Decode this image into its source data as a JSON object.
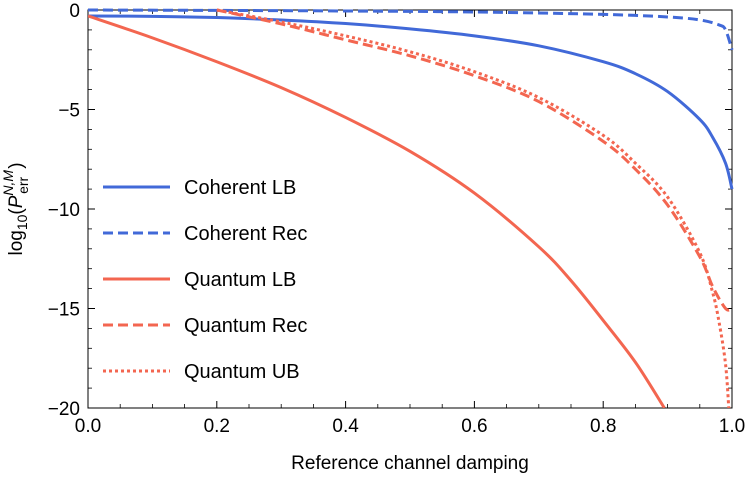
{
  "chart_data": {
    "type": "line",
    "xlabel": "Reference channel damping",
    "ylabel": {
      "base": "log",
      "sub": "10",
      "open": "(",
      "p": "P",
      "sup": "N,M",
      "psub": "err",
      "close": ")"
    },
    "xlim": [
      0.0,
      1.0
    ],
    "ylim": [
      -20,
      0
    ],
    "x_ticks": [
      "0.0",
      "0.2",
      "0.4",
      "0.6",
      "0.8",
      "1.0"
    ],
    "y_ticks": [
      "0",
      "−5",
      "−10",
      "−15",
      "−20"
    ],
    "legend_position": "center-left",
    "series": [
      {
        "name": "Coherent LB",
        "color": "#4169D8",
        "dash": "solid",
        "x": [
          0,
          0.1,
          0.2,
          0.3,
          0.4,
          0.5,
          0.6,
          0.7,
          0.8,
          0.85,
          0.9,
          0.95,
          0.97,
          0.99,
          1.0
        ],
        "y": [
          -0.3,
          -0.32,
          -0.38,
          -0.5,
          -0.68,
          -0.95,
          -1.3,
          -1.8,
          -2.6,
          -3.2,
          -4.1,
          -5.5,
          -6.4,
          -7.7,
          -9.0
        ]
      },
      {
        "name": "Coherent Rec",
        "color": "#4169D8",
        "dash": "dashed",
        "x": [
          0,
          0.2,
          0.4,
          0.6,
          0.8,
          0.9,
          0.95,
          0.98,
          0.99,
          1.0
        ],
        "y": [
          0,
          -0.02,
          -0.05,
          -0.1,
          -0.22,
          -0.35,
          -0.5,
          -0.75,
          -1.0,
          -2.0
        ]
      },
      {
        "name": "Quantum LB",
        "color": "#F36650",
        "dash": "solid",
        "x": [
          0,
          0.1,
          0.2,
          0.3,
          0.4,
          0.5,
          0.6,
          0.7,
          0.75,
          0.8,
          0.85,
          0.895
        ],
        "y": [
          -0.3,
          -1.4,
          -2.6,
          -3.9,
          -5.4,
          -7.1,
          -9.2,
          -11.9,
          -13.6,
          -15.6,
          -17.7,
          -20.0
        ]
      },
      {
        "name": "Quantum Rec",
        "color": "#F36650",
        "dash": "dashed",
        "x": [
          0.2,
          0.3,
          0.4,
          0.5,
          0.6,
          0.7,
          0.8,
          0.85,
          0.9,
          0.95,
          0.97,
          0.99,
          1.0
        ],
        "y": [
          0,
          -0.7,
          -1.5,
          -2.3,
          -3.3,
          -4.6,
          -6.6,
          -8.0,
          -9.8,
          -12.4,
          -13.9,
          -15.0,
          -15.0
        ]
      },
      {
        "name": "Quantum UB",
        "color": "#F36650",
        "dash": "dotted",
        "x": [
          0.2,
          0.3,
          0.4,
          0.5,
          0.6,
          0.7,
          0.8,
          0.85,
          0.9,
          0.95,
          0.97,
          0.98,
          0.99,
          0.995
        ],
        "y": [
          0,
          -0.6,
          -1.3,
          -2.1,
          -3.1,
          -4.4,
          -6.3,
          -7.7,
          -9.4,
          -12.2,
          -14.2,
          -15.7,
          -17.8,
          -20.0
        ]
      }
    ]
  }
}
